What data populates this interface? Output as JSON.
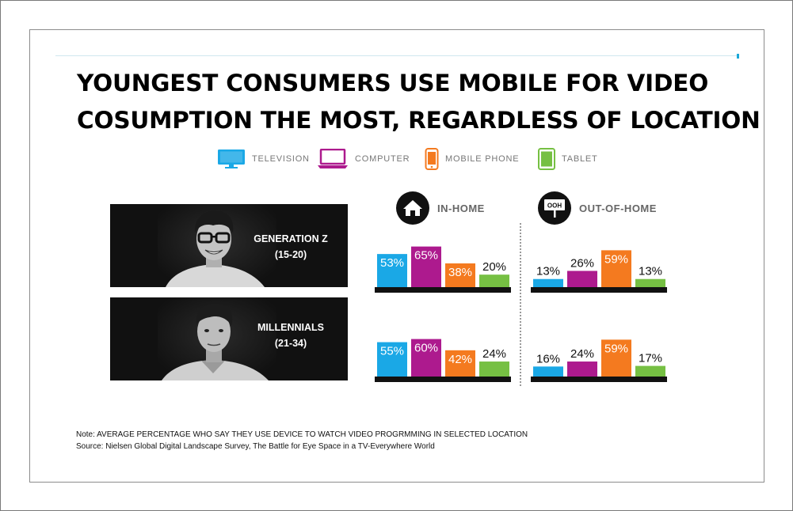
{
  "title_lines": [
    "YOUNGEST CONSUMERS USE MOBILE FOR VIDEO",
    "COSUMPTION THE MOST, REGARDLESS OF LOCATION"
  ],
  "legend": [
    {
      "label": "TELEVISION",
      "color": "#1aa8e6",
      "icon": "television-icon"
    },
    {
      "label": "COMPUTER",
      "color": "#ad1a8e",
      "icon": "computer-icon"
    },
    {
      "label": "MOBILE PHONE",
      "color": "#f47a1f",
      "icon": "mobile-phone-icon"
    },
    {
      "label": "TABLET",
      "color": "#76c043",
      "icon": "tablet-icon"
    }
  ],
  "locations": {
    "in_home": {
      "label": "IN-HOME",
      "icon": "home-icon"
    },
    "out_of_home": {
      "label": "OUT-OF-HOME",
      "icon": "ooh-sign-icon",
      "sign_text": "OOH"
    }
  },
  "groups": [
    {
      "name": "GENERATION Z",
      "age": "(15-20)"
    },
    {
      "name": "MILLENNIALS",
      "age": "(21-34)"
    }
  ],
  "chart_data": [
    {
      "type": "bar",
      "group": "GENERATION Z",
      "location": "IN-HOME",
      "categories": [
        "TELEVISION",
        "COMPUTER",
        "MOBILE PHONE",
        "TABLET"
      ],
      "values": [
        53,
        65,
        38,
        20
      ],
      "labels": [
        "53%",
        "65%",
        "38%",
        "20%"
      ]
    },
    {
      "type": "bar",
      "group": "GENERATION Z",
      "location": "OUT-OF-HOME",
      "categories": [
        "TELEVISION",
        "COMPUTER",
        "MOBILE PHONE",
        "TABLET"
      ],
      "values": [
        13,
        26,
        59,
        13
      ],
      "labels": [
        "13%",
        "26%",
        "59%",
        "13%"
      ]
    },
    {
      "type": "bar",
      "group": "MILLENNIALS",
      "location": "IN-HOME",
      "categories": [
        "TELEVISION",
        "COMPUTER",
        "MOBILE PHONE",
        "TABLET"
      ],
      "values": [
        55,
        60,
        42,
        24
      ],
      "labels": [
        "55%",
        "60%",
        "42%",
        "24%"
      ]
    },
    {
      "type": "bar",
      "group": "MILLENNIALS",
      "location": "OUT-OF-HOME",
      "categories": [
        "TELEVISION",
        "COMPUTER",
        "MOBILE PHONE",
        "TABLET"
      ],
      "values": [
        16,
        24,
        59,
        17
      ],
      "labels": [
        "16%",
        "24%",
        "59%",
        "17%"
      ]
    }
  ],
  "note": "Note: AVERAGE PERCENTAGE WHO SAY THEY USE DEVICE TO WATCH VIDEO PROGRMMING IN SELECTED LOCATION",
  "source": "Source: Nielsen Global Digital Landscape Survey, The Battle for Eye Space in a TV-Everywhere World"
}
